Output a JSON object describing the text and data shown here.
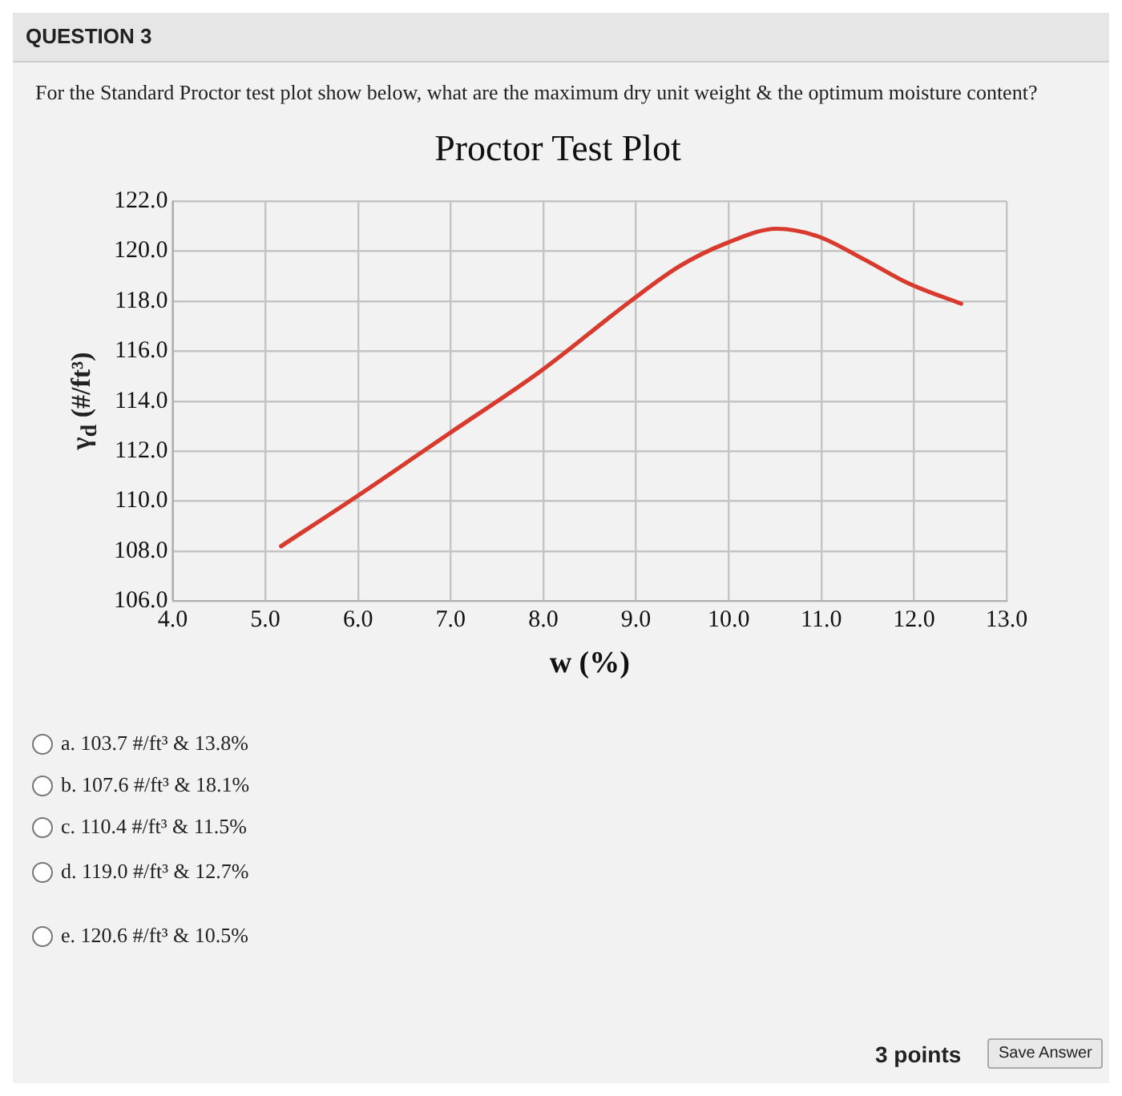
{
  "chart_data": {
    "type": "line",
    "title": "Proctor Test Plot",
    "xlabel": "w (%)",
    "ylabel": "γ$_{d}$ (#/ft³)",
    "series": [
      {
        "color": "#d93a2e",
        "x": [
          5.17,
          5.99,
          6.98,
          7.97,
          8.94,
          9.47,
          9.96,
          10.52,
          10.96,
          11.45,
          11.95,
          12.51
        ],
        "values": [
          108.2,
          110.2,
          112.7,
          115.2,
          118.0,
          119.4,
          120.3,
          120.9,
          120.6,
          119.7,
          118.7,
          117.9
        ]
      }
    ],
    "xlim": [
      4,
      13
    ],
    "xticks": [
      {
        "value": 4,
        "label": "4.0"
      },
      {
        "value": 5,
        "label": "5.0"
      },
      {
        "value": 6,
        "label": "6.0"
      },
      {
        "value": 7,
        "label": "7.0"
      },
      {
        "value": 8,
        "label": "8.0"
      },
      {
        "value": 9,
        "label": "9.0"
      },
      {
        "value": 10,
        "label": "10.0"
      },
      {
        "value": 11,
        "label": "11.0"
      },
      {
        "value": 12,
        "label": "12.0"
      },
      {
        "value": 13,
        "label": "13.0"
      }
    ],
    "ylim": [
      106,
      122
    ],
    "yticks": [
      {
        "value": 106,
        "label": "106.0"
      },
      {
        "value": 108,
        "label": "108.0"
      },
      {
        "value": 110,
        "label": "110.0"
      },
      {
        "value": 112,
        "label": "112.0"
      },
      {
        "value": 114,
        "label": "114.0"
      },
      {
        "value": 116,
        "label": "116.0"
      },
      {
        "value": 118,
        "label": "118.0"
      },
      {
        "value": 120,
        "label": "120.0"
      },
      {
        "value": 122,
        "label": "122.0"
      }
    ],
    "grid": true,
    "marker": "none",
    "line_style": "solid",
    "annotations": [
      "QUESTION 3",
      "For the Standard Proctor test plot show below, what are the maximum dry unit weight & the optimum moisture content?",
      "a. 103.7 #/ft³ & 13.8%",
      "b. 107.6 #/ft³ & 18.1%",
      "c. 110.4 #/ft³ & 11.5%",
      "d. 119.0 #/ft³ & 12.7%",
      "e. 120.6 #/ft³ & 10.5%",
      "3 points",
      "Save Answer"
    ]
  }
}
